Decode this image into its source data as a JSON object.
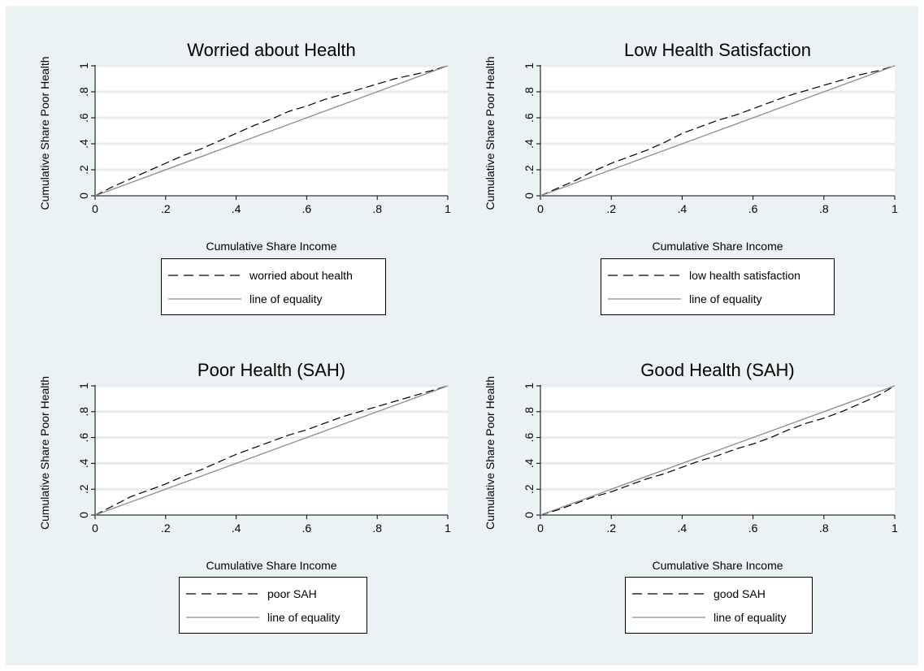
{
  "colors": {
    "background": "#eaf2f3",
    "plot_background": "#ffffff",
    "grid": "#e6ecec",
    "concentration_curve": "#000000",
    "equality_line": "#8c8c8c"
  },
  "chart_data": [
    {
      "type": "line",
      "title": "Worried about Health",
      "xlabel": "Cumulative Share Income",
      "ylabel": "Cumulative Share Poor Health",
      "xlim": [
        0,
        1
      ],
      "ylim": [
        0,
        1
      ],
      "x_ticks": [
        "0",
        ".2",
        ".4",
        ".6",
        ".8",
        "1"
      ],
      "y_ticks": [
        "0",
        ".2",
        ".4",
        ".6",
        ".8",
        "1"
      ],
      "grid": true,
      "legend_position": "below",
      "series": [
        {
          "name": "worried about health",
          "style": "dashed",
          "x": [
            0,
            0.05,
            0.1,
            0.15,
            0.2,
            0.25,
            0.3,
            0.35,
            0.4,
            0.45,
            0.5,
            0.55,
            0.6,
            0.65,
            0.7,
            0.75,
            0.8,
            0.85,
            0.9,
            0.95,
            1
          ],
          "y": [
            0,
            0.07,
            0.13,
            0.19,
            0.25,
            0.31,
            0.36,
            0.42,
            0.48,
            0.54,
            0.59,
            0.65,
            0.69,
            0.74,
            0.78,
            0.82,
            0.86,
            0.9,
            0.93,
            0.96,
            1
          ]
        },
        {
          "name": "line of equality",
          "style": "solid",
          "x": [
            0,
            1
          ],
          "y": [
            0,
            1
          ]
        }
      ]
    },
    {
      "type": "line",
      "title": "Low Health Satisfaction",
      "xlabel": "Cumulative Share Income",
      "ylabel": "Cumulative Share Poor Health",
      "xlim": [
        0,
        1
      ],
      "ylim": [
        0,
        1
      ],
      "x_ticks": [
        "0",
        ".2",
        ".4",
        ".6",
        ".8",
        "1"
      ],
      "y_ticks": [
        "0",
        ".2",
        ".4",
        ".6",
        ".8",
        "1"
      ],
      "grid": true,
      "legend_position": "below",
      "series": [
        {
          "name": "low health satisfaction",
          "style": "dashed",
          "x": [
            0,
            0.05,
            0.1,
            0.15,
            0.2,
            0.25,
            0.3,
            0.35,
            0.4,
            0.45,
            0.5,
            0.55,
            0.6,
            0.65,
            0.7,
            0.75,
            0.8,
            0.85,
            0.9,
            0.95,
            1
          ],
          "y": [
            0,
            0.06,
            0.12,
            0.19,
            0.25,
            0.3,
            0.35,
            0.41,
            0.48,
            0.53,
            0.58,
            0.62,
            0.67,
            0.72,
            0.77,
            0.81,
            0.85,
            0.89,
            0.93,
            0.96,
            1
          ]
        },
        {
          "name": "line of equality",
          "style": "solid",
          "x": [
            0,
            1
          ],
          "y": [
            0,
            1
          ]
        }
      ]
    },
    {
      "type": "line",
      "title": "Poor Health (SAH)",
      "xlabel": "Cumulative Share Income",
      "ylabel": "Cumulative Share Poor Health",
      "xlim": [
        0,
        1
      ],
      "ylim": [
        0,
        1
      ],
      "x_ticks": [
        "0",
        ".2",
        ".4",
        ".6",
        ".8",
        "1"
      ],
      "y_ticks": [
        "0",
        ".2",
        ".4",
        ".6",
        ".8",
        "1"
      ],
      "grid": true,
      "legend_position": "below",
      "series": [
        {
          "name": "poor SAH",
          "style": "dashed",
          "x": [
            0,
            0.05,
            0.1,
            0.15,
            0.2,
            0.25,
            0.3,
            0.35,
            0.4,
            0.45,
            0.5,
            0.55,
            0.6,
            0.65,
            0.7,
            0.75,
            0.8,
            0.85,
            0.9,
            0.95,
            1
          ],
          "y": [
            0,
            0.07,
            0.14,
            0.19,
            0.24,
            0.3,
            0.35,
            0.41,
            0.47,
            0.52,
            0.57,
            0.62,
            0.66,
            0.71,
            0.76,
            0.8,
            0.84,
            0.88,
            0.92,
            0.96,
            1
          ]
        },
        {
          "name": "line of equality",
          "style": "solid",
          "x": [
            0,
            1
          ],
          "y": [
            0,
            1
          ]
        }
      ]
    },
    {
      "type": "line",
      "title": "Good Health (SAH)",
      "xlabel": "Cumulative Share Income",
      "ylabel": "Cumulative Share Poor Health",
      "xlim": [
        0,
        1
      ],
      "ylim": [
        0,
        1
      ],
      "x_ticks": [
        "0",
        ".2",
        ".4",
        ".6",
        ".8",
        "1"
      ],
      "y_ticks": [
        "0",
        ".2",
        ".4",
        ".6",
        ".8",
        "1"
      ],
      "grid": true,
      "legend_position": "below",
      "series": [
        {
          "name": "good SAH",
          "style": "dashed",
          "x": [
            0,
            0.05,
            0.1,
            0.15,
            0.2,
            0.25,
            0.3,
            0.35,
            0.4,
            0.45,
            0.5,
            0.55,
            0.6,
            0.65,
            0.7,
            0.75,
            0.8,
            0.85,
            0.9,
            0.95,
            1
          ],
          "y": [
            0,
            0.04,
            0.09,
            0.14,
            0.18,
            0.23,
            0.28,
            0.32,
            0.37,
            0.42,
            0.46,
            0.51,
            0.55,
            0.6,
            0.66,
            0.71,
            0.75,
            0.8,
            0.86,
            0.92,
            1
          ]
        },
        {
          "name": "line of equality",
          "style": "solid",
          "x": [
            0,
            1
          ],
          "y": [
            0,
            1
          ]
        }
      ]
    }
  ]
}
